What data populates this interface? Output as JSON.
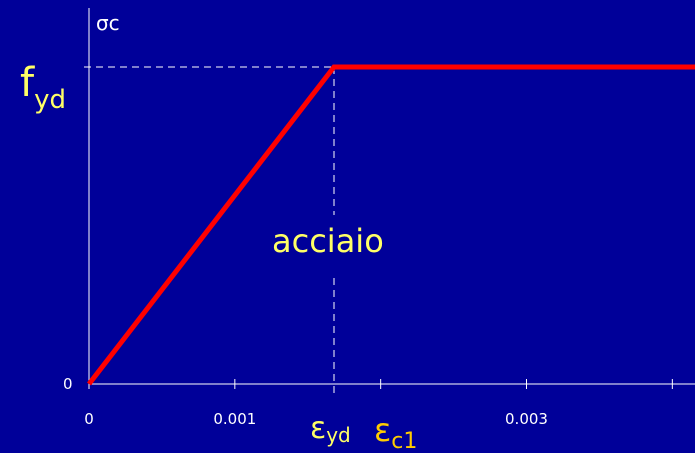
{
  "chart_data": {
    "type": "line",
    "series": [
      {
        "x": [
          0,
          0.00168,
          0.0042
        ],
        "y": [
          0,
          1,
          1
        ],
        "color": "#ff0000"
      }
    ],
    "xlim": [
      0,
      0.004
    ],
    "ylim": [
      0,
      1.2
    ],
    "x_ticks": [
      0,
      0.001,
      0.002,
      0.003,
      0.004
    ],
    "x_tick_labels": [
      "0",
      "0.001",
      "",
      "0.003",
      ""
    ],
    "y_tick_labels": [
      "0"
    ],
    "ylabel": "σc",
    "y_marker": {
      "value": 1,
      "label": "f",
      "subscript": "yd"
    },
    "x_marker": {
      "value": 0.00168,
      "label": "ε",
      "subscript": "yd"
    },
    "x_marker_2": {
      "label": "ε",
      "subscript": "c1",
      "color": "#ffcc00"
    },
    "annotation": "acciaio",
    "grid": false,
    "colors": {
      "background": "#000099",
      "axis": "#ffffff",
      "curve": "#ff0000",
      "label": "#ffff66",
      "label_alt": "#ffcc00"
    }
  }
}
